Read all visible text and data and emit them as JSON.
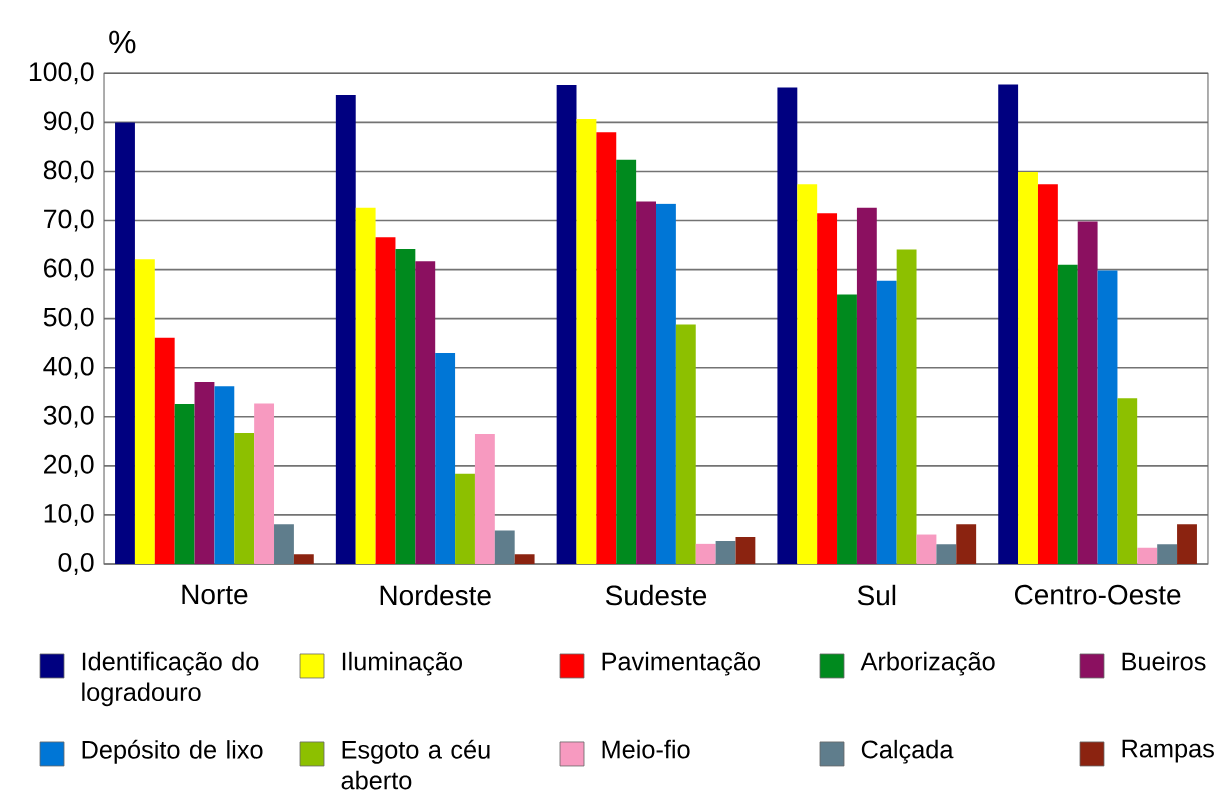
{
  "chart_data": {
    "type": "bar",
    "ylabel": "%",
    "categories": [
      "Norte",
      "Nordeste",
      "Sudeste",
      "Sul",
      "Centro-Oeste"
    ],
    "series": [
      {
        "name": "Identificação do logradouro",
        "color": "#000080",
        "values": [
          90.0,
          95.6,
          97.6,
          97.1,
          97.7
        ]
      },
      {
        "name": "Iluminação",
        "color": "#ffff00",
        "values": [
          62.1,
          72.6,
          90.7,
          77.4,
          79.9
        ]
      },
      {
        "name": "Pavimentação",
        "color": "#ff0000",
        "values": [
          46.1,
          66.6,
          88.0,
          71.5,
          77.4
        ]
      },
      {
        "name": "Arborização",
        "color": "#008a1e",
        "values": [
          32.6,
          64.2,
          82.4,
          54.9,
          61.0
        ]
      },
      {
        "name": "Bueiros",
        "color": "#8b1060",
        "values": [
          37.1,
          61.7,
          73.9,
          72.6,
          69.8
        ]
      },
      {
        "name": "Depósito de lixo",
        "color": "#0076d6",
        "values": [
          36.2,
          43.0,
          73.4,
          57.7,
          59.8
        ]
      },
      {
        "name": "Esgoto a céu aberto",
        "color": "#8dc000",
        "values": [
          26.7,
          18.4,
          48.8,
          64.1,
          33.8
        ]
      },
      {
        "name": "Meio-fio",
        "color": "#f79ac0",
        "values": [
          32.7,
          26.5,
          4.1,
          6.0,
          3.3
        ]
      },
      {
        "name": "Calçada",
        "color": "#5f7d8c",
        "values": [
          8.1,
          6.8,
          4.7,
          4.0,
          4.0
        ]
      },
      {
        "name": "Rampas",
        "color": "#8b2310",
        "values": [
          2.0,
          2.0,
          5.5,
          8.1,
          8.1
        ]
      }
    ],
    "ylim": [
      0,
      100
    ],
    "yticks": [
      {
        "value": 0,
        "label": "0,0"
      },
      {
        "value": 10,
        "label": "10,0"
      },
      {
        "value": 20,
        "label": "20,0"
      },
      {
        "value": 30,
        "label": "30,0"
      },
      {
        "value": 40,
        "label": "40,0"
      },
      {
        "value": 50,
        "label": "50,0"
      },
      {
        "value": 60,
        "label": "60,0"
      },
      {
        "value": 70,
        "label": "70,0"
      },
      {
        "value": 80,
        "label": "80,0"
      },
      {
        "value": 90,
        "label": "90,0"
      },
      {
        "value": 100,
        "label": "100,0"
      }
    ],
    "grid": "y",
    "legend": "bottom"
  }
}
